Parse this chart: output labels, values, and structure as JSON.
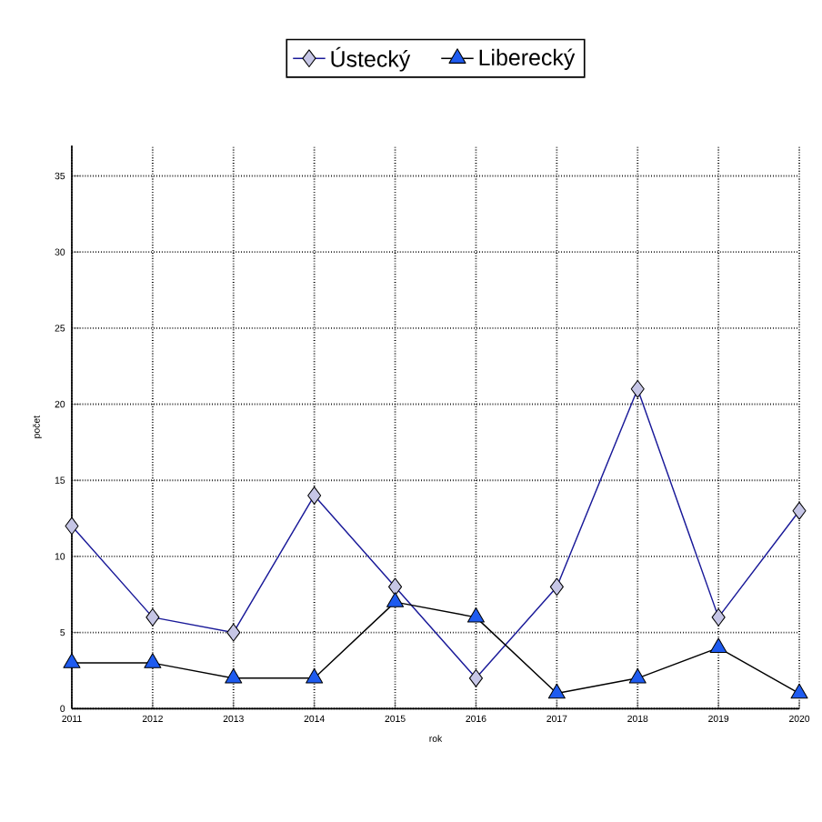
{
  "chart_data": {
    "type": "line",
    "xlabel": "rok",
    "ylabel": "počet",
    "x": [
      2011,
      2012,
      2013,
      2014,
      2015,
      2016,
      2017,
      2018,
      2019,
      2020
    ],
    "series": [
      {
        "name": "Ústecký",
        "color": "#1a1a99",
        "marker": "diamond",
        "values": [
          12,
          6,
          5,
          14,
          8,
          2,
          8,
          21,
          6,
          13
        ]
      },
      {
        "name": "Liberecký",
        "color": "#1e5bf0",
        "marker": "triangle",
        "values": [
          3,
          3,
          2,
          2,
          7,
          6,
          1,
          2,
          4,
          1
        ]
      }
    ],
    "xlim": [
      2011,
      2020
    ],
    "xticks": [
      2011,
      2012,
      2013,
      2014,
      2015,
      2016,
      2017,
      2018,
      2019,
      2020
    ],
    "ylim": [
      0,
      37
    ],
    "yticks": [
      0,
      5,
      10,
      15,
      20,
      25,
      30,
      35
    ],
    "grid": true,
    "legend": "top",
    "line_style": "solid"
  }
}
